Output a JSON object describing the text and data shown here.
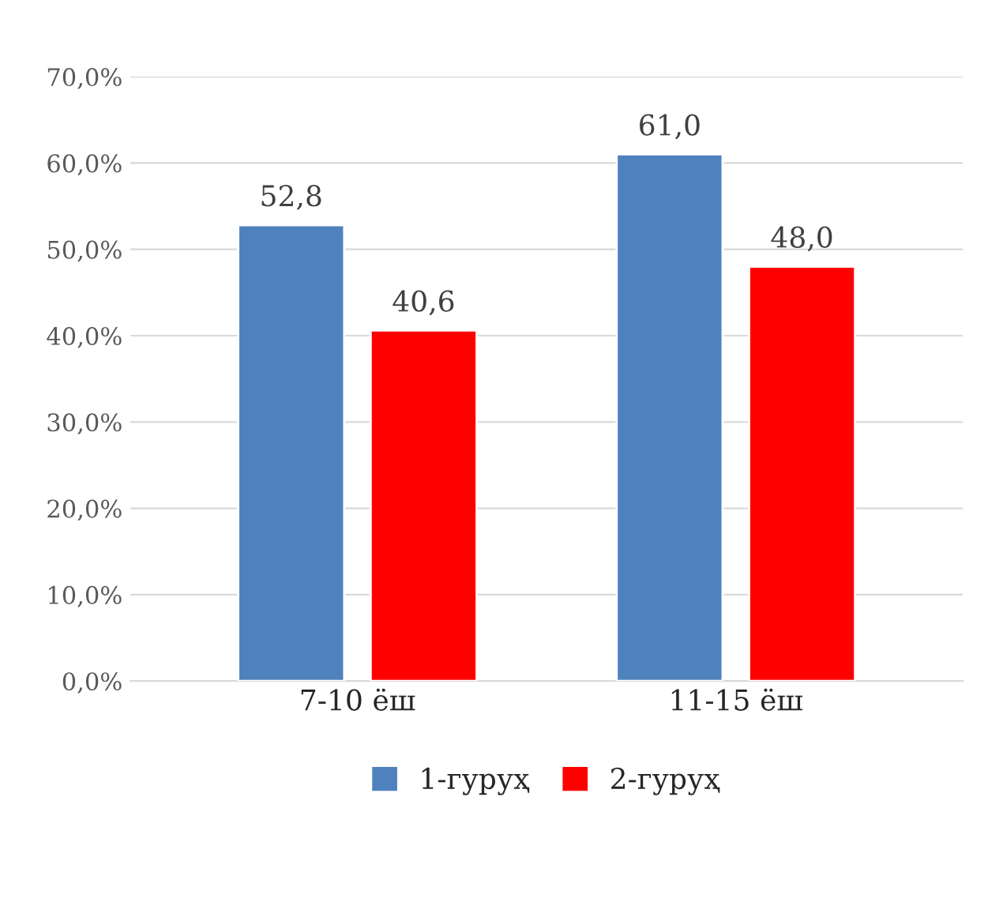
{
  "chart_data": {
    "type": "bar",
    "categories": [
      "7-10 ёш",
      "11-15 ёш"
    ],
    "series": [
      {
        "name": "1-гуруҳ",
        "color": "#4f81bd",
        "values": [
          52.8,
          61.0
        ],
        "value_labels": [
          "52,8",
          "61,0"
        ]
      },
      {
        "name": "2-гуруҳ",
        "color": "#ff0000",
        "values": [
          40.6,
          48.0
        ],
        "value_labels": [
          "40,6",
          "48,0"
        ]
      }
    ],
    "ylim": [
      0,
      70
    ],
    "yticks": [
      {
        "value": 0,
        "label": "0,0%"
      },
      {
        "value": 10,
        "label": "10,0%"
      },
      {
        "value": 20,
        "label": "20,0%"
      },
      {
        "value": 30,
        "label": "30,0%"
      },
      {
        "value": 40,
        "label": "40,0%"
      },
      {
        "value": 50,
        "label": "50,0%"
      },
      {
        "value": 60,
        "label": "60,0%"
      },
      {
        "value": 70,
        "label": "70,0%"
      }
    ],
    "grid": "y",
    "legend": "bottom"
  }
}
